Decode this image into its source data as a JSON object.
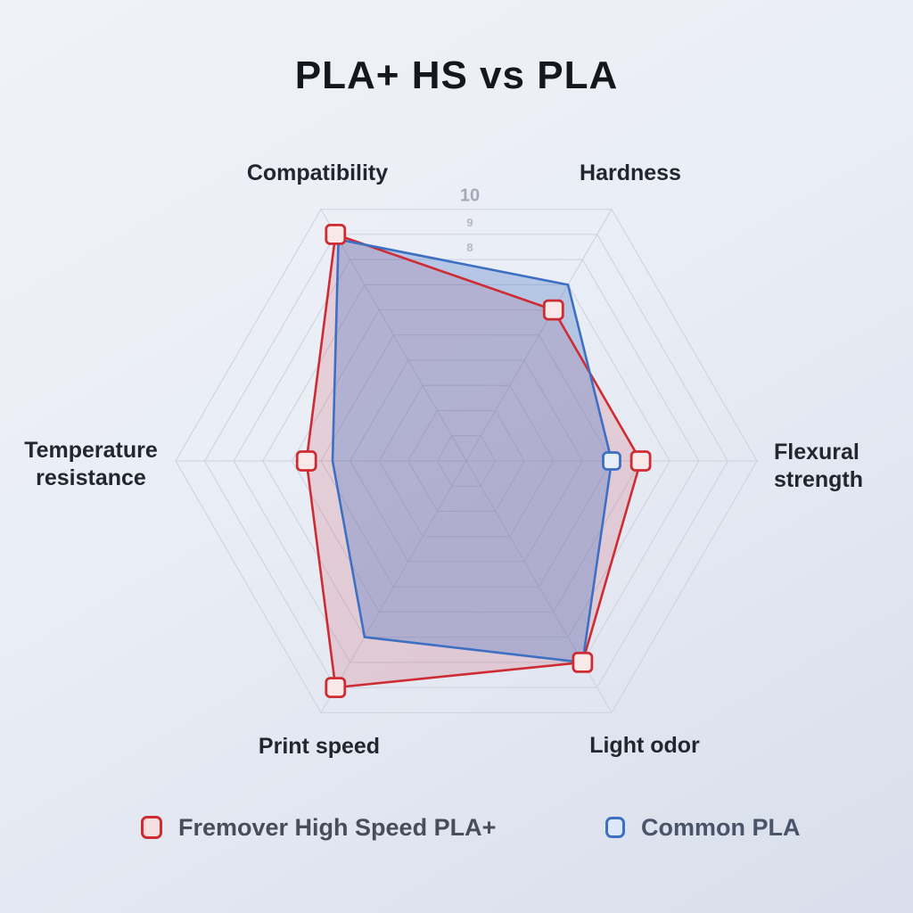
{
  "title": "PLA+ HS vs PLA",
  "chart_data": {
    "type": "radar",
    "title": "PLA+ HS vs PLA",
    "categories": [
      "Compatibility",
      "Hardness",
      "Flexural strength",
      "Light odor",
      "Print speed",
      "Temperature resistance"
    ],
    "axis_range": [
      0,
      10
    ],
    "ring_count": 10,
    "visible_tick_labels": [
      10,
      9,
      8
    ],
    "grid": true,
    "grid_shape": "hexagon",
    "legend_position": "bottom",
    "series": [
      {
        "name": "Fremover High Speed PLA+",
        "line_color": "#ce2b33",
        "marker_fill": "#f8e8e8",
        "area_color": "rgba(206,45,60,0.16)",
        "values": [
          9,
          6,
          6,
          8,
          9,
          5.5
        ],
        "marker_indices": [
          0,
          1,
          2,
          3,
          4,
          5
        ]
      },
      {
        "name": "Common PLA",
        "line_color": "#3d6fc2",
        "marker_fill": "#e6eefb",
        "area_color": "rgba(70,115,195,0.32)",
        "values": [
          8.8,
          7,
          5,
          8,
          7,
          4.6
        ],
        "marker_indices": [
          2
        ]
      }
    ]
  },
  "legend": {
    "items": [
      {
        "label": "Fremover High Speed PLA+",
        "swatch_border": "#ce2b33",
        "swatch_fill": "#f5dfdf"
      },
      {
        "label": "Common PLA",
        "swatch_border": "#3d6fc2",
        "swatch_fill": "#dce8f9"
      }
    ]
  }
}
